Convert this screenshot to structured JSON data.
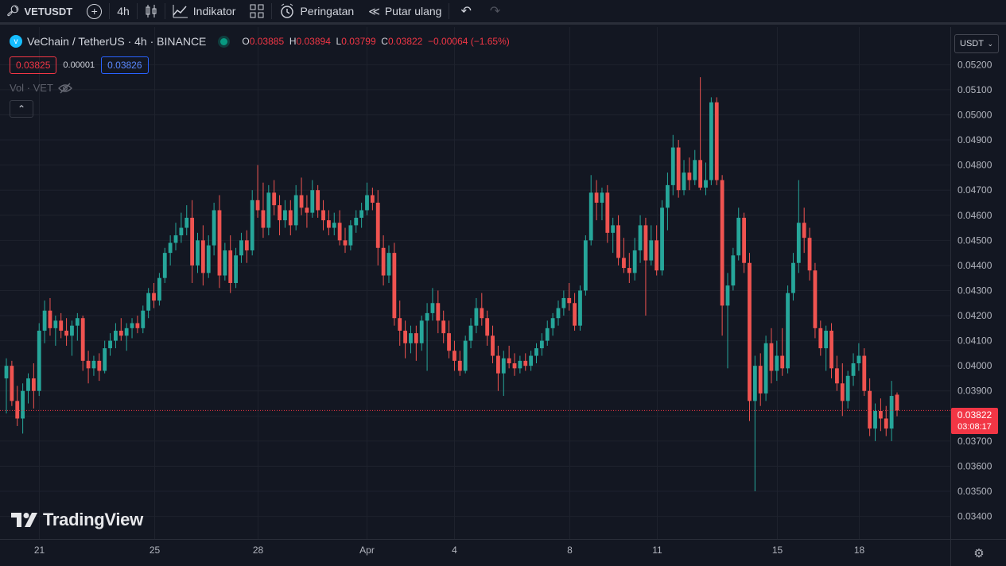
{
  "toolbar": {
    "symbol": "VETUSDT",
    "interval": "4h",
    "indicators_label": "Indikator",
    "alerts_label": "Peringatan",
    "replay_label": "Putar ulang"
  },
  "legend": {
    "title": "VeChain / TetherUS · 4h · BINANCE",
    "o_label": "O",
    "o_value": "0.03885",
    "h_label": "H",
    "h_value": "0.03894",
    "l_label": "L",
    "l_value": "0.03799",
    "c_label": "C",
    "c_value": "0.03822",
    "change": "−0.00064 (−1.65%)",
    "sell_price": "0.03825",
    "spread": "0.00001",
    "buy_price": "0.03826",
    "volume_label": "Vol · VET"
  },
  "currency_selector": "USDT",
  "current_price": "0.03822",
  "countdown": "03:08:17",
  "watermark": "TradingView",
  "colors": {
    "background": "#131722",
    "up": "#26a69a",
    "down": "#ef5350",
    "grid": "#1e222d",
    "price_line": "#f23645"
  },
  "chart_data": {
    "type": "candlestick",
    "title": "VeChain / TetherUS · 4h · BINANCE",
    "y_ticks": [
      "0.03400",
      "0.03500",
      "0.03600",
      "0.03700",
      "0.03800",
      "0.03900",
      "0.04000",
      "0.04100",
      "0.04200",
      "0.04300",
      "0.04400",
      "0.04500",
      "0.04600",
      "0.04700",
      "0.04800",
      "0.04900",
      "0.05000",
      "0.05100",
      "0.05200"
    ],
    "ylim": [
      0.0331,
      0.0535
    ],
    "x_ticks": [
      "21",
      "25",
      "28",
      "Apr",
      "4",
      "8",
      "11",
      "15",
      "18"
    ],
    "last_price": 0.03822,
    "candles": [
      {
        "o": 0.0395,
        "h": 0.0403,
        "l": 0.0381,
        "c": 0.04
      },
      {
        "o": 0.04,
        "h": 0.0402,
        "l": 0.0384,
        "c": 0.0386
      },
      {
        "o": 0.0386,
        "h": 0.0392,
        "l": 0.0376,
        "c": 0.0379
      },
      {
        "o": 0.0379,
        "h": 0.0393,
        "l": 0.0373,
        "c": 0.039
      },
      {
        "o": 0.039,
        "h": 0.0397,
        "l": 0.0385,
        "c": 0.0395
      },
      {
        "o": 0.0395,
        "h": 0.0401,
        "l": 0.0383,
        "c": 0.039
      },
      {
        "o": 0.039,
        "h": 0.0417,
        "l": 0.0388,
        "c": 0.0414
      },
      {
        "o": 0.0414,
        "h": 0.0426,
        "l": 0.0409,
        "c": 0.0422
      },
      {
        "o": 0.0422,
        "h": 0.0427,
        "l": 0.0412,
        "c": 0.0415
      },
      {
        "o": 0.0415,
        "h": 0.042,
        "l": 0.0408,
        "c": 0.0418
      },
      {
        "o": 0.0418,
        "h": 0.0421,
        "l": 0.0411,
        "c": 0.0414
      },
      {
        "o": 0.0414,
        "h": 0.0419,
        "l": 0.0408,
        "c": 0.0412
      },
      {
        "o": 0.0412,
        "h": 0.0418,
        "l": 0.0404,
        "c": 0.0416
      },
      {
        "o": 0.0416,
        "h": 0.0421,
        "l": 0.041,
        "c": 0.0419
      },
      {
        "o": 0.0419,
        "h": 0.042,
        "l": 0.0398,
        "c": 0.0402
      },
      {
        "o": 0.0402,
        "h": 0.0406,
        "l": 0.0393,
        "c": 0.0399
      },
      {
        "o": 0.0399,
        "h": 0.0404,
        "l": 0.0396,
        "c": 0.0402
      },
      {
        "o": 0.0402,
        "h": 0.0405,
        "l": 0.0394,
        "c": 0.0398
      },
      {
        "o": 0.0398,
        "h": 0.041,
        "l": 0.0397,
        "c": 0.0407
      },
      {
        "o": 0.0407,
        "h": 0.0413,
        "l": 0.0404,
        "c": 0.041
      },
      {
        "o": 0.041,
        "h": 0.0417,
        "l": 0.0407,
        "c": 0.0414
      },
      {
        "o": 0.0414,
        "h": 0.0419,
        "l": 0.041,
        "c": 0.0412
      },
      {
        "o": 0.0412,
        "h": 0.0417,
        "l": 0.0406,
        "c": 0.0415
      },
      {
        "o": 0.0415,
        "h": 0.0419,
        "l": 0.0411,
        "c": 0.0417
      },
      {
        "o": 0.0417,
        "h": 0.042,
        "l": 0.0413,
        "c": 0.0415
      },
      {
        "o": 0.0415,
        "h": 0.0424,
        "l": 0.0413,
        "c": 0.0422
      },
      {
        "o": 0.0422,
        "h": 0.0431,
        "l": 0.0419,
        "c": 0.0429
      },
      {
        "o": 0.0429,
        "h": 0.0433,
        "l": 0.0423,
        "c": 0.0426
      },
      {
        "o": 0.0426,
        "h": 0.0437,
        "l": 0.0424,
        "c": 0.0435
      },
      {
        "o": 0.0435,
        "h": 0.0447,
        "l": 0.0433,
        "c": 0.0445
      },
      {
        "o": 0.0445,
        "h": 0.0452,
        "l": 0.044,
        "c": 0.0449
      },
      {
        "o": 0.0449,
        "h": 0.0457,
        "l": 0.0446,
        "c": 0.0452
      },
      {
        "o": 0.0452,
        "h": 0.0461,
        "l": 0.0449,
        "c": 0.0455
      },
      {
        "o": 0.0455,
        "h": 0.0464,
        "l": 0.0452,
        "c": 0.0459
      },
      {
        "o": 0.0459,
        "h": 0.0466,
        "l": 0.0433,
        "c": 0.044
      },
      {
        "o": 0.044,
        "h": 0.0453,
        "l": 0.0437,
        "c": 0.045
      },
      {
        "o": 0.045,
        "h": 0.0456,
        "l": 0.0432,
        "c": 0.0437
      },
      {
        "o": 0.0437,
        "h": 0.0452,
        "l": 0.0435,
        "c": 0.0448
      },
      {
        "o": 0.0448,
        "h": 0.0465,
        "l": 0.0444,
        "c": 0.0462
      },
      {
        "o": 0.0462,
        "h": 0.0468,
        "l": 0.0431,
        "c": 0.0436
      },
      {
        "o": 0.0436,
        "h": 0.0449,
        "l": 0.0434,
        "c": 0.0446
      },
      {
        "o": 0.0446,
        "h": 0.0452,
        "l": 0.0429,
        "c": 0.0433
      },
      {
        "o": 0.0433,
        "h": 0.0447,
        "l": 0.0431,
        "c": 0.0444
      },
      {
        "o": 0.0444,
        "h": 0.0453,
        "l": 0.0441,
        "c": 0.045
      },
      {
        "o": 0.045,
        "h": 0.0454,
        "l": 0.0441,
        "c": 0.0446
      },
      {
        "o": 0.0446,
        "h": 0.047,
        "l": 0.0444,
        "c": 0.0466
      },
      {
        "o": 0.0466,
        "h": 0.048,
        "l": 0.0459,
        "c": 0.0462
      },
      {
        "o": 0.0462,
        "h": 0.0473,
        "l": 0.0451,
        "c": 0.0455
      },
      {
        "o": 0.0455,
        "h": 0.0472,
        "l": 0.0452,
        "c": 0.0469
      },
      {
        "o": 0.0469,
        "h": 0.0474,
        "l": 0.046,
        "c": 0.0464
      },
      {
        "o": 0.0464,
        "h": 0.0468,
        "l": 0.0452,
        "c": 0.0458
      },
      {
        "o": 0.0458,
        "h": 0.0466,
        "l": 0.0455,
        "c": 0.0462
      },
      {
        "o": 0.0462,
        "h": 0.0466,
        "l": 0.0452,
        "c": 0.0456
      },
      {
        "o": 0.0456,
        "h": 0.0472,
        "l": 0.0454,
        "c": 0.0468
      },
      {
        "o": 0.0468,
        "h": 0.0475,
        "l": 0.046,
        "c": 0.0463
      },
      {
        "o": 0.0463,
        "h": 0.0468,
        "l": 0.0455,
        "c": 0.0461
      },
      {
        "o": 0.0461,
        "h": 0.0474,
        "l": 0.0459,
        "c": 0.047
      },
      {
        "o": 0.047,
        "h": 0.0472,
        "l": 0.0459,
        "c": 0.0462
      },
      {
        "o": 0.0462,
        "h": 0.0466,
        "l": 0.0454,
        "c": 0.0458
      },
      {
        "o": 0.0458,
        "h": 0.0462,
        "l": 0.0452,
        "c": 0.0455
      },
      {
        "o": 0.0455,
        "h": 0.0461,
        "l": 0.0452,
        "c": 0.0457
      },
      {
        "o": 0.0457,
        "h": 0.0462,
        "l": 0.0448,
        "c": 0.045
      },
      {
        "o": 0.045,
        "h": 0.0455,
        "l": 0.0445,
        "c": 0.0448
      },
      {
        "o": 0.0448,
        "h": 0.0458,
        "l": 0.0446,
        "c": 0.0456
      },
      {
        "o": 0.0456,
        "h": 0.0462,
        "l": 0.0453,
        "c": 0.0459
      },
      {
        "o": 0.0459,
        "h": 0.0465,
        "l": 0.0455,
        "c": 0.0462
      },
      {
        "o": 0.0462,
        "h": 0.0473,
        "l": 0.046,
        "c": 0.0468
      },
      {
        "o": 0.0468,
        "h": 0.0471,
        "l": 0.0462,
        "c": 0.0465
      },
      {
        "o": 0.0465,
        "h": 0.047,
        "l": 0.044,
        "c": 0.0447
      },
      {
        "o": 0.0447,
        "h": 0.0452,
        "l": 0.0432,
        "c": 0.0436
      },
      {
        "o": 0.0436,
        "h": 0.0448,
        "l": 0.0433,
        "c": 0.0445
      },
      {
        "o": 0.0445,
        "h": 0.0449,
        "l": 0.0416,
        "c": 0.0419
      },
      {
        "o": 0.0419,
        "h": 0.0426,
        "l": 0.0408,
        "c": 0.0414
      },
      {
        "o": 0.0414,
        "h": 0.0418,
        "l": 0.0403,
        "c": 0.0409
      },
      {
        "o": 0.0409,
        "h": 0.0416,
        "l": 0.0405,
        "c": 0.0413
      },
      {
        "o": 0.0413,
        "h": 0.0416,
        "l": 0.0402,
        "c": 0.0409
      },
      {
        "o": 0.0409,
        "h": 0.042,
        "l": 0.0406,
        "c": 0.0418
      },
      {
        "o": 0.0418,
        "h": 0.0425,
        "l": 0.0398,
        "c": 0.0421
      },
      {
        "o": 0.0421,
        "h": 0.0431,
        "l": 0.0418,
        "c": 0.0425
      },
      {
        "o": 0.0425,
        "h": 0.043,
        "l": 0.0413,
        "c": 0.0418
      },
      {
        "o": 0.0418,
        "h": 0.0422,
        "l": 0.0409,
        "c": 0.0413
      },
      {
        "o": 0.0413,
        "h": 0.0418,
        "l": 0.0403,
        "c": 0.0406
      },
      {
        "o": 0.0406,
        "h": 0.041,
        "l": 0.0398,
        "c": 0.0402
      },
      {
        "o": 0.0402,
        "h": 0.0406,
        "l": 0.0396,
        "c": 0.0398
      },
      {
        "o": 0.0398,
        "h": 0.0412,
        "l": 0.0397,
        "c": 0.041
      },
      {
        "o": 0.041,
        "h": 0.0419,
        "l": 0.0407,
        "c": 0.0416
      },
      {
        "o": 0.0416,
        "h": 0.0427,
        "l": 0.0413,
        "c": 0.0423
      },
      {
        "o": 0.0423,
        "h": 0.0429,
        "l": 0.0416,
        "c": 0.0419
      },
      {
        "o": 0.0419,
        "h": 0.0422,
        "l": 0.0408,
        "c": 0.0412
      },
      {
        "o": 0.0412,
        "h": 0.0416,
        "l": 0.0401,
        "c": 0.0404
      },
      {
        "o": 0.0404,
        "h": 0.0408,
        "l": 0.039,
        "c": 0.0397
      },
      {
        "o": 0.0397,
        "h": 0.0406,
        "l": 0.0388,
        "c": 0.0403
      },
      {
        "o": 0.0403,
        "h": 0.0408,
        "l": 0.0399,
        "c": 0.0401
      },
      {
        "o": 0.0401,
        "h": 0.0405,
        "l": 0.0396,
        "c": 0.0399
      },
      {
        "o": 0.0399,
        "h": 0.0404,
        "l": 0.0397,
        "c": 0.0402
      },
      {
        "o": 0.0402,
        "h": 0.0405,
        "l": 0.0398,
        "c": 0.04
      },
      {
        "o": 0.04,
        "h": 0.0406,
        "l": 0.0398,
        "c": 0.0404
      },
      {
        "o": 0.0404,
        "h": 0.0409,
        "l": 0.0401,
        "c": 0.0407
      },
      {
        "o": 0.0407,
        "h": 0.0413,
        "l": 0.0404,
        "c": 0.041
      },
      {
        "o": 0.041,
        "h": 0.0418,
        "l": 0.0408,
        "c": 0.0415
      },
      {
        "o": 0.0415,
        "h": 0.0421,
        "l": 0.0412,
        "c": 0.0419
      },
      {
        "o": 0.0419,
        "h": 0.0426,
        "l": 0.0416,
        "c": 0.0423
      },
      {
        "o": 0.0423,
        "h": 0.043,
        "l": 0.042,
        "c": 0.0427
      },
      {
        "o": 0.0427,
        "h": 0.0433,
        "l": 0.0422,
        "c": 0.0425
      },
      {
        "o": 0.0425,
        "h": 0.0429,
        "l": 0.0414,
        "c": 0.0416
      },
      {
        "o": 0.0416,
        "h": 0.0432,
        "l": 0.0414,
        "c": 0.043
      },
      {
        "o": 0.043,
        "h": 0.0452,
        "l": 0.0428,
        "c": 0.045
      },
      {
        "o": 0.045,
        "h": 0.0476,
        "l": 0.0448,
        "c": 0.0469
      },
      {
        "o": 0.0469,
        "h": 0.0474,
        "l": 0.0458,
        "c": 0.0465
      },
      {
        "o": 0.0465,
        "h": 0.0471,
        "l": 0.0458,
        "c": 0.0469
      },
      {
        "o": 0.0469,
        "h": 0.0472,
        "l": 0.0449,
        "c": 0.0453
      },
      {
        "o": 0.0453,
        "h": 0.0459,
        "l": 0.0445,
        "c": 0.0456
      },
      {
        "o": 0.0456,
        "h": 0.046,
        "l": 0.044,
        "c": 0.0443
      },
      {
        "o": 0.0443,
        "h": 0.0451,
        "l": 0.0437,
        "c": 0.0439
      },
      {
        "o": 0.0439,
        "h": 0.0445,
        "l": 0.0433,
        "c": 0.0437
      },
      {
        "o": 0.0437,
        "h": 0.0451,
        "l": 0.0434,
        "c": 0.0446
      },
      {
        "o": 0.0446,
        "h": 0.046,
        "l": 0.0441,
        "c": 0.0456
      },
      {
        "o": 0.0456,
        "h": 0.0459,
        "l": 0.042,
        "c": 0.0442
      },
      {
        "o": 0.0442,
        "h": 0.0456,
        "l": 0.044,
        "c": 0.045
      },
      {
        "o": 0.045,
        "h": 0.0456,
        "l": 0.0436,
        "c": 0.0438
      },
      {
        "o": 0.0438,
        "h": 0.0466,
        "l": 0.0436,
        "c": 0.0463
      },
      {
        "o": 0.0463,
        "h": 0.0477,
        "l": 0.0454,
        "c": 0.0472
      },
      {
        "o": 0.0472,
        "h": 0.0492,
        "l": 0.0468,
        "c": 0.0487
      },
      {
        "o": 0.0487,
        "h": 0.049,
        "l": 0.0467,
        "c": 0.047
      },
      {
        "o": 0.047,
        "h": 0.0482,
        "l": 0.0468,
        "c": 0.0477
      },
      {
        "o": 0.0477,
        "h": 0.0483,
        "l": 0.047,
        "c": 0.0474
      },
      {
        "o": 0.0474,
        "h": 0.0486,
        "l": 0.0472,
        "c": 0.0482
      },
      {
        "o": 0.0482,
        "h": 0.0515,
        "l": 0.047,
        "c": 0.0471
      },
      {
        "o": 0.0471,
        "h": 0.0481,
        "l": 0.0468,
        "c": 0.0474
      },
      {
        "o": 0.0474,
        "h": 0.0507,
        "l": 0.0472,
        "c": 0.0505
      },
      {
        "o": 0.0505,
        "h": 0.0507,
        "l": 0.0472,
        "c": 0.0474
      },
      {
        "o": 0.0474,
        "h": 0.0476,
        "l": 0.0412,
        "c": 0.0424
      },
      {
        "o": 0.0424,
        "h": 0.0437,
        "l": 0.0399,
        "c": 0.0432
      },
      {
        "o": 0.0432,
        "h": 0.0447,
        "l": 0.043,
        "c": 0.0444
      },
      {
        "o": 0.0444,
        "h": 0.0463,
        "l": 0.0442,
        "c": 0.0459
      },
      {
        "o": 0.0459,
        "h": 0.0461,
        "l": 0.0437,
        "c": 0.0441
      },
      {
        "o": 0.0441,
        "h": 0.0445,
        "l": 0.0378,
        "c": 0.0386
      },
      {
        "o": 0.0386,
        "h": 0.0404,
        "l": 0.035,
        "c": 0.04
      },
      {
        "o": 0.04,
        "h": 0.0405,
        "l": 0.0384,
        "c": 0.0389
      },
      {
        "o": 0.0389,
        "h": 0.0412,
        "l": 0.0386,
        "c": 0.0409
      },
      {
        "o": 0.0409,
        "h": 0.0415,
        "l": 0.0393,
        "c": 0.0398
      },
      {
        "o": 0.0398,
        "h": 0.041,
        "l": 0.0394,
        "c": 0.0404
      },
      {
        "o": 0.0404,
        "h": 0.0415,
        "l": 0.0396,
        "c": 0.0399
      },
      {
        "o": 0.0399,
        "h": 0.0432,
        "l": 0.0397,
        "c": 0.0429
      },
      {
        "o": 0.0429,
        "h": 0.0445,
        "l": 0.0426,
        "c": 0.0441
      },
      {
        "o": 0.0441,
        "h": 0.0474,
        "l": 0.0437,
        "c": 0.0457
      },
      {
        "o": 0.0457,
        "h": 0.0463,
        "l": 0.0445,
        "c": 0.0451
      },
      {
        "o": 0.0451,
        "h": 0.0455,
        "l": 0.0434,
        "c": 0.0438
      },
      {
        "o": 0.0438,
        "h": 0.0441,
        "l": 0.0411,
        "c": 0.0415
      },
      {
        "o": 0.0415,
        "h": 0.0418,
        "l": 0.0404,
        "c": 0.0407
      },
      {
        "o": 0.0407,
        "h": 0.0416,
        "l": 0.0398,
        "c": 0.0414
      },
      {
        "o": 0.0414,
        "h": 0.0417,
        "l": 0.0395,
        "c": 0.0399
      },
      {
        "o": 0.0399,
        "h": 0.0404,
        "l": 0.039,
        "c": 0.0393
      },
      {
        "o": 0.0393,
        "h": 0.0401,
        "l": 0.038,
        "c": 0.0386
      },
      {
        "o": 0.0386,
        "h": 0.0398,
        "l": 0.0383,
        "c": 0.0396
      },
      {
        "o": 0.0396,
        "h": 0.0405,
        "l": 0.0392,
        "c": 0.0401
      },
      {
        "o": 0.0401,
        "h": 0.0409,
        "l": 0.0398,
        "c": 0.0404
      },
      {
        "o": 0.0404,
        "h": 0.0407,
        "l": 0.0388,
        "c": 0.039
      },
      {
        "o": 0.039,
        "h": 0.0395,
        "l": 0.0372,
        "c": 0.0375
      },
      {
        "o": 0.0375,
        "h": 0.0385,
        "l": 0.037,
        "c": 0.0382
      },
      {
        "o": 0.0382,
        "h": 0.0387,
        "l": 0.0374,
        "c": 0.0379
      },
      {
        "o": 0.0379,
        "h": 0.0384,
        "l": 0.0372,
        "c": 0.0375
      },
      {
        "o": 0.0375,
        "h": 0.0394,
        "l": 0.037,
        "c": 0.0388
      },
      {
        "o": 0.03885,
        "h": 0.03894,
        "l": 0.03799,
        "c": 0.03822
      }
    ]
  }
}
